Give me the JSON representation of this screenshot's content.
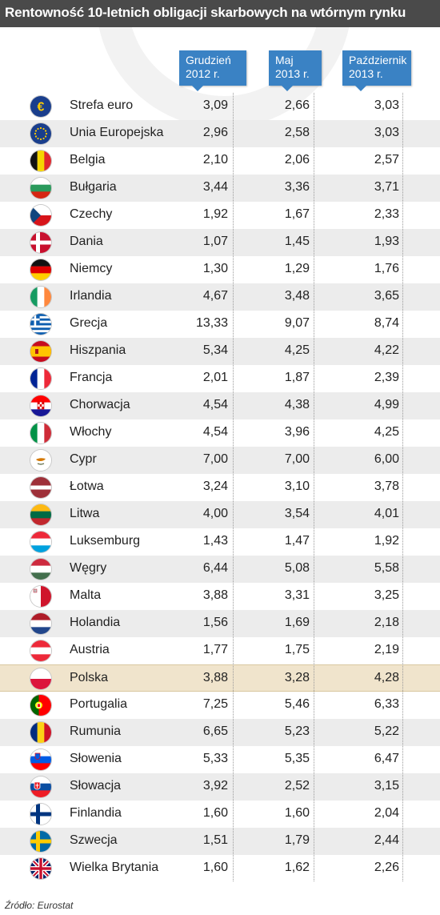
{
  "title": "Rentowność 10-letnich obligacji skarbowych na wtórnym rynku",
  "source": "Źródło: Eurostat",
  "chart_data": {
    "type": "table",
    "columns": [
      {
        "line1": "Grudzień",
        "line2": "2012 r."
      },
      {
        "line1": "Maj",
        "line2": "2013 r."
      },
      {
        "line1": "Październik",
        "line2": "2013 r."
      }
    ],
    "highlight_row": "Polska",
    "rows": [
      {
        "name": "Strefa euro",
        "flag": "euro-icon",
        "values": [
          "3,09",
          "2,66",
          "3,03"
        ]
      },
      {
        "name": "Unia Europejska",
        "flag": "eu-flag-icon",
        "values": [
          "2,96",
          "2,58",
          "3,03"
        ]
      },
      {
        "name": "Belgia",
        "flag": "belgium-flag-icon",
        "values": [
          "2,10",
          "2,06",
          "2,57"
        ]
      },
      {
        "name": "Bułgaria",
        "flag": "bulgaria-flag-icon",
        "values": [
          "3,44",
          "3,36",
          "3,71"
        ]
      },
      {
        "name": "Czechy",
        "flag": "czech-flag-icon",
        "values": [
          "1,92",
          "1,67",
          "2,33"
        ]
      },
      {
        "name": "Dania",
        "flag": "denmark-flag-icon",
        "values": [
          "1,07",
          "1,45",
          "1,93"
        ]
      },
      {
        "name": "Niemcy",
        "flag": "germany-flag-icon",
        "values": [
          "1,30",
          "1,29",
          "1,76"
        ]
      },
      {
        "name": "Irlandia",
        "flag": "ireland-flag-icon",
        "values": [
          "4,67",
          "3,48",
          "3,65"
        ]
      },
      {
        "name": "Grecja",
        "flag": "greece-flag-icon",
        "values": [
          "13,33",
          "9,07",
          "8,74"
        ]
      },
      {
        "name": "Hiszpania",
        "flag": "spain-flag-icon",
        "values": [
          "5,34",
          "4,25",
          "4,22"
        ]
      },
      {
        "name": "Francja",
        "flag": "france-flag-icon",
        "values": [
          "2,01",
          "1,87",
          "2,39"
        ]
      },
      {
        "name": "Chorwacja",
        "flag": "croatia-flag-icon",
        "values": [
          "4,54",
          "4,38",
          "4,99"
        ]
      },
      {
        "name": "Włochy",
        "flag": "italy-flag-icon",
        "values": [
          "4,54",
          "3,96",
          "4,25"
        ]
      },
      {
        "name": "Cypr",
        "flag": "cyprus-flag-icon",
        "values": [
          "7,00",
          "7,00",
          "6,00"
        ]
      },
      {
        "name": "Łotwa",
        "flag": "latvia-flag-icon",
        "values": [
          "3,24",
          "3,10",
          "3,78"
        ]
      },
      {
        "name": "Litwa",
        "flag": "lithuania-flag-icon",
        "values": [
          "4,00",
          "3,54",
          "4,01"
        ]
      },
      {
        "name": "Luksemburg",
        "flag": "luxembourg-flag-icon",
        "values": [
          "1,43",
          "1,47",
          "1,92"
        ]
      },
      {
        "name": "Węgry",
        "flag": "hungary-flag-icon",
        "values": [
          "6,44",
          "5,08",
          "5,58"
        ]
      },
      {
        "name": "Malta",
        "flag": "malta-flag-icon",
        "values": [
          "3,88",
          "3,31",
          "3,25"
        ]
      },
      {
        "name": "Holandia",
        "flag": "netherlands-flag-icon",
        "values": [
          "1,56",
          "1,69",
          "2,18"
        ]
      },
      {
        "name": "Austria",
        "flag": "austria-flag-icon",
        "values": [
          "1,77",
          "1,75",
          "2,19"
        ]
      },
      {
        "name": "Polska",
        "flag": "poland-flag-icon",
        "values": [
          "3,88",
          "3,28",
          "4,28"
        ]
      },
      {
        "name": "Portugalia",
        "flag": "portugal-flag-icon",
        "values": [
          "7,25",
          "5,46",
          "6,33"
        ]
      },
      {
        "name": "Rumunia",
        "flag": "romania-flag-icon",
        "values": [
          "6,65",
          "5,23",
          "5,22"
        ]
      },
      {
        "name": "Słowenia",
        "flag": "slovenia-flag-icon",
        "values": [
          "5,33",
          "5,35",
          "6,47"
        ]
      },
      {
        "name": "Słowacja",
        "flag": "slovakia-flag-icon",
        "values": [
          "3,92",
          "2,52",
          "3,15"
        ]
      },
      {
        "name": "Finlandia",
        "flag": "finland-flag-icon",
        "values": [
          "1,60",
          "1,60",
          "2,04"
        ]
      },
      {
        "name": "Szwecja",
        "flag": "sweden-flag-icon",
        "values": [
          "1,51",
          "1,79",
          "2,44"
        ]
      },
      {
        "name": "Wielka Brytania",
        "flag": "uk-flag-icon",
        "values": [
          "1,60",
          "1,62",
          "2,26"
        ]
      }
    ]
  },
  "colors": {
    "title_bar": "#4a4a4a",
    "header_box": "#3a82c4",
    "row_alt": "#ececec",
    "row_highlight": "#f0e4cc"
  }
}
